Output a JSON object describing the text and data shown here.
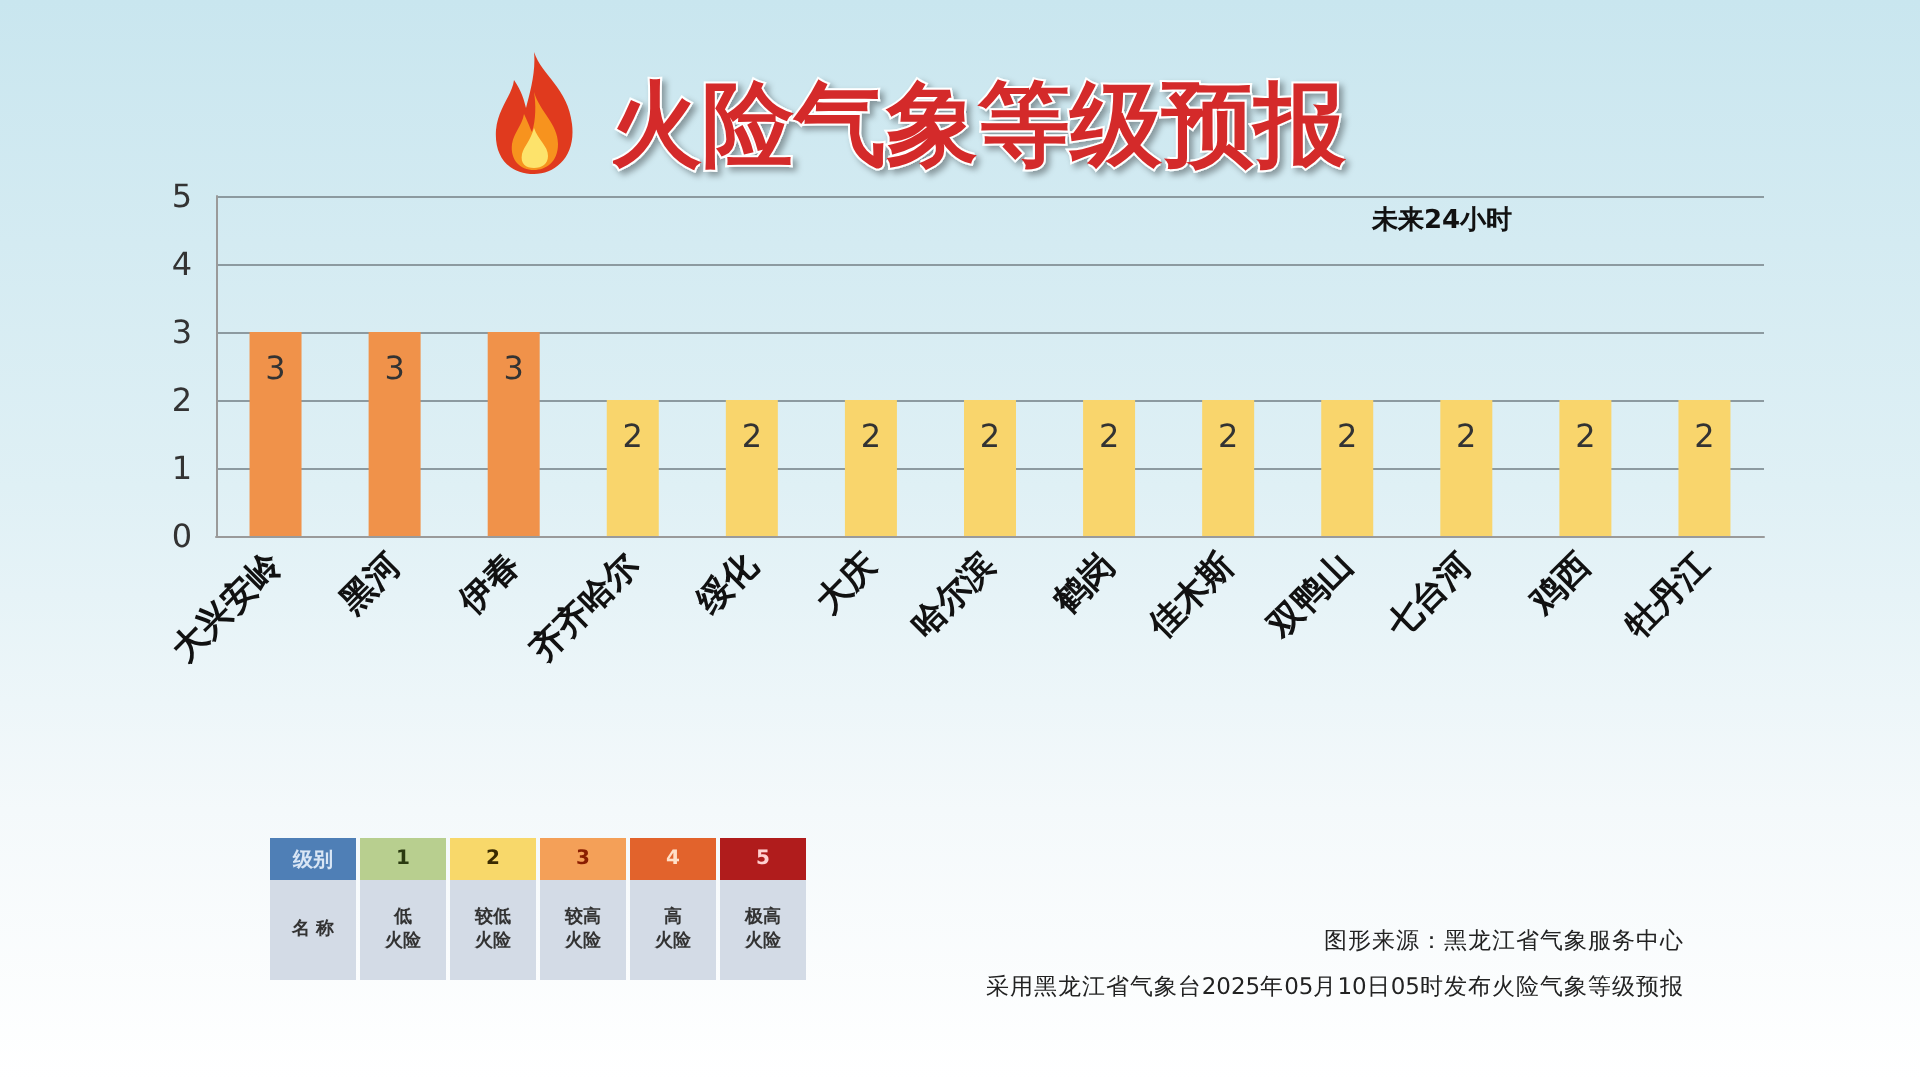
{
  "chart_data": {
    "type": "bar",
    "title": "火险气象等级预报",
    "categories": [
      "大兴安岭",
      "黑河",
      "伊春",
      "齐齐哈尔",
      "绥化",
      "大庆",
      "哈尔滨",
      "鹤岗",
      "佳木斯",
      "双鸭山",
      "七台河",
      "鸡西",
      "牡丹江"
    ],
    "values": [
      3,
      3,
      3,
      2,
      2,
      2,
      2,
      2,
      2,
      2,
      2,
      2,
      2
    ],
    "colors": [
      "#f0924a",
      "#f0924a",
      "#f0924a",
      "#f9d56c",
      "#f9d56c",
      "#f9d56c",
      "#f9d56c",
      "#f9d56c",
      "#f9d56c",
      "#f9d56c",
      "#f9d56c",
      "#f9d56c",
      "#f9d56c"
    ],
    "ylim": [
      0,
      5
    ],
    "yticks": [
      0,
      1,
      2,
      3,
      4,
      5
    ],
    "grid": "y",
    "data_labels": true,
    "annotations": [
      "未来24小时",
      "级别",
      "1",
      "2",
      "3",
      "4",
      "5",
      "名 称",
      "低火险",
      "较低火险",
      "较高火险",
      "高火险",
      "极高火险",
      "图形来源：黑龙江省气象服务中心",
      "采用黑龙江省气象台2025年05月10日05时发布火险气象等级预报"
    ]
  }
}
